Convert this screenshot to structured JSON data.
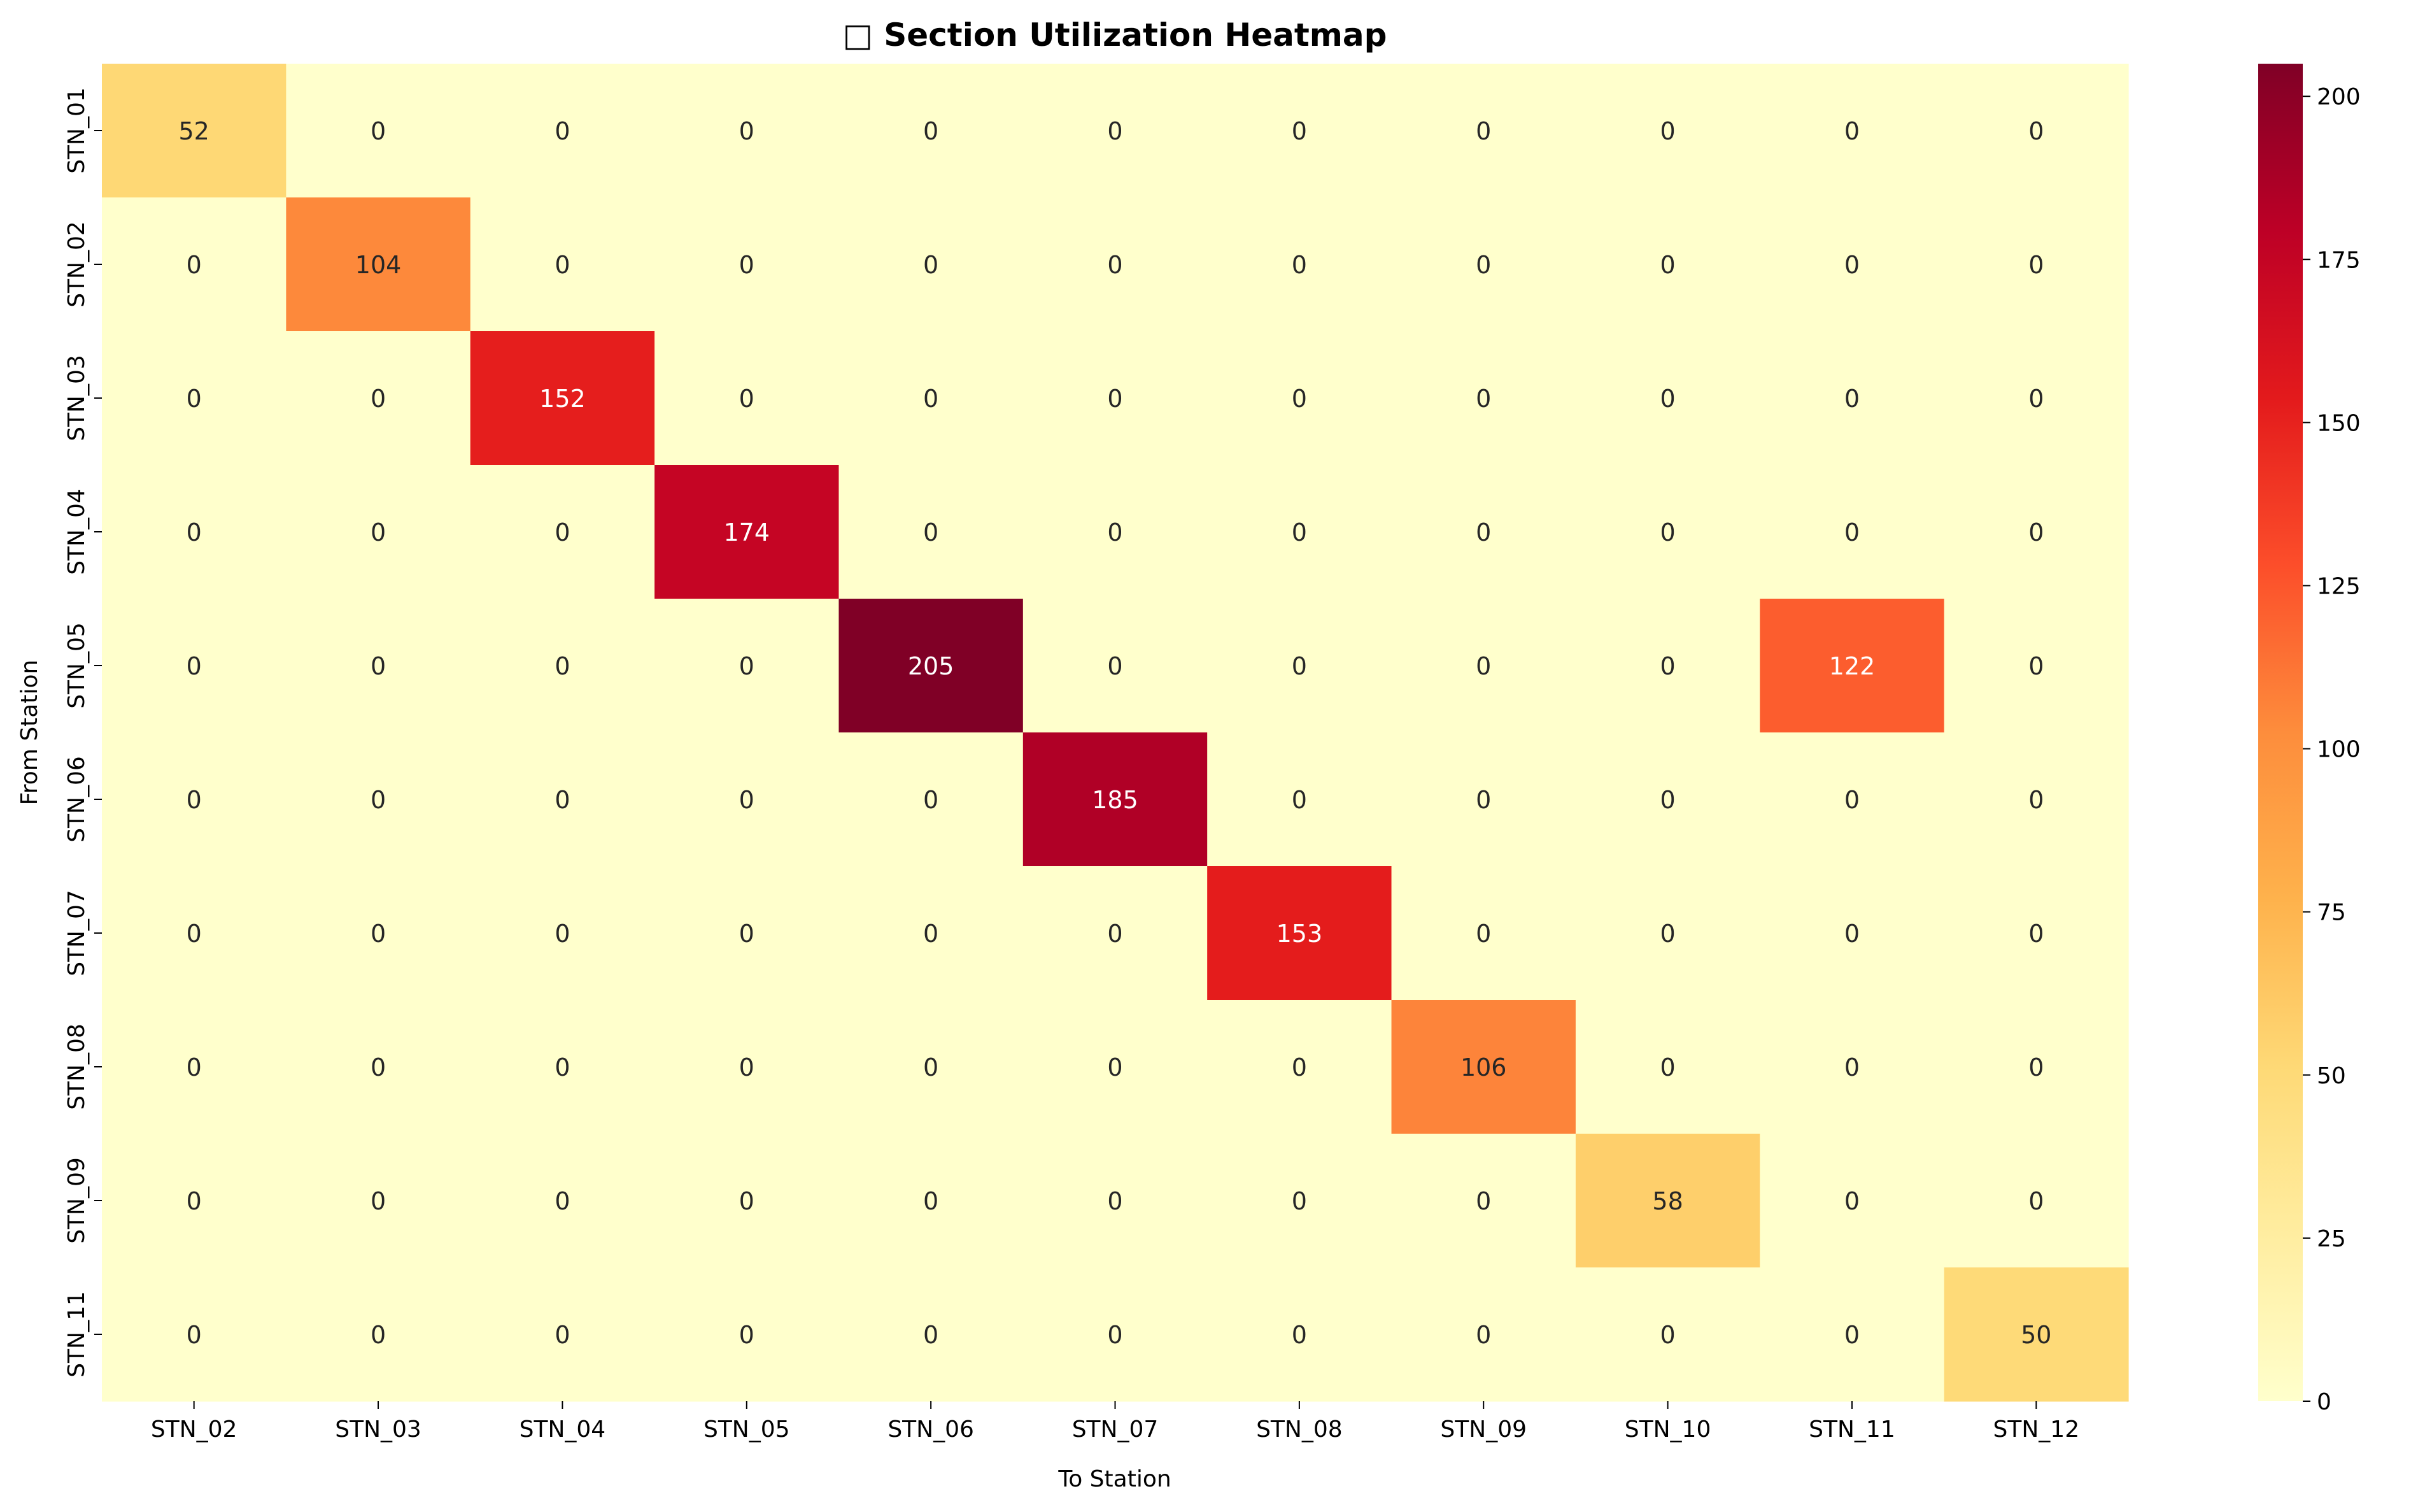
{
  "chart_data": {
    "type": "heatmap",
    "title": "□ Section Utilization Heatmap",
    "xlabel": "To Station",
    "ylabel": "From Station",
    "x_categories": [
      "STN_02",
      "STN_03",
      "STN_04",
      "STN_05",
      "STN_06",
      "STN_07",
      "STN_08",
      "STN_09",
      "STN_10",
      "STN_11",
      "STN_12"
    ],
    "y_categories": [
      "STN_01",
      "STN_02",
      "STN_03",
      "STN_04",
      "STN_05",
      "STN_06",
      "STN_07",
      "STN_08",
      "STN_09",
      "STN_11"
    ],
    "values": [
      [
        52,
        0,
        0,
        0,
        0,
        0,
        0,
        0,
        0,
        0,
        0
      ],
      [
        0,
        104,
        0,
        0,
        0,
        0,
        0,
        0,
        0,
        0,
        0
      ],
      [
        0,
        0,
        152,
        0,
        0,
        0,
        0,
        0,
        0,
        0,
        0
      ],
      [
        0,
        0,
        0,
        174,
        0,
        0,
        0,
        0,
        0,
        0,
        0
      ],
      [
        0,
        0,
        0,
        0,
        205,
        0,
        0,
        0,
        0,
        122,
        0
      ],
      [
        0,
        0,
        0,
        0,
        0,
        185,
        0,
        0,
        0,
        0,
        0
      ],
      [
        0,
        0,
        0,
        0,
        0,
        0,
        153,
        0,
        0,
        0,
        0
      ],
      [
        0,
        0,
        0,
        0,
        0,
        0,
        0,
        106,
        0,
        0,
        0
      ],
      [
        0,
        0,
        0,
        0,
        0,
        0,
        0,
        0,
        58,
        0,
        0
      ],
      [
        0,
        0,
        0,
        0,
        0,
        0,
        0,
        0,
        0,
        0,
        50
      ]
    ],
    "colormap": "YlOrRd",
    "colorbar": {
      "range": [
        0,
        205
      ],
      "ticks": [
        0,
        25,
        50,
        75,
        100,
        125,
        150,
        175,
        200
      ]
    },
    "annotations": true,
    "grid": false,
    "legend": "colorbar-right"
  }
}
